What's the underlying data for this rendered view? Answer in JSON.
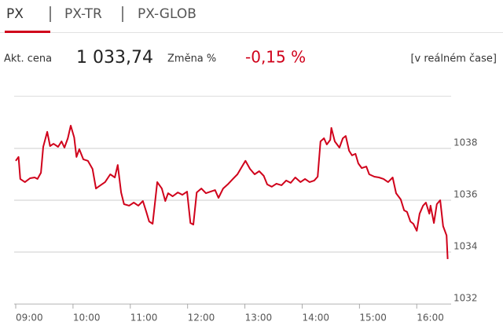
{
  "tabs": [
    "PX",
    "PX-TR",
    "PX-GLOB"
  ],
  "quote": {
    "price_label": "Akt. cena",
    "price": "1 033,74",
    "change_label": "Změna %",
    "change": "-0,15 %",
    "realtime": "[v reálném čase]"
  },
  "chart_data": {
    "type": "line",
    "color": "#d0021b",
    "grid": true,
    "x": [
      9.0,
      9.05,
      9.08,
      9.16,
      9.25,
      9.33,
      9.38,
      9.44,
      9.48,
      9.55,
      9.6,
      9.66,
      9.74,
      9.8,
      9.85,
      9.91,
      9.96,
      10.02,
      10.06,
      10.11,
      10.18,
      10.26,
      10.34,
      10.4,
      10.48,
      10.56,
      10.65,
      10.73,
      10.78,
      10.84,
      10.89,
      10.98,
      11.06,
      11.14,
      11.22,
      11.28,
      11.33,
      11.39,
      11.47,
      11.55,
      11.61,
      11.66,
      11.74,
      11.83,
      11.91,
      11.99,
      12.05,
      12.1,
      12.16,
      12.24,
      12.32,
      12.4,
      12.48,
      12.54,
      12.62,
      12.7,
      12.79,
      12.87,
      12.95,
      13.01,
      13.09,
      13.17,
      13.25,
      13.33,
      13.39,
      13.47,
      13.55,
      13.64,
      13.72,
      13.8,
      13.88,
      13.97,
      14.05,
      14.13,
      14.21,
      14.27,
      14.32,
      14.38,
      14.43,
      14.49,
      14.51,
      14.57,
      14.65,
      14.71,
      14.76,
      14.82,
      14.87,
      14.93,
      14.98,
      15.04,
      15.12,
      15.17,
      15.26,
      15.34,
      15.42,
      15.5,
      15.58,
      15.64,
      15.72,
      15.78,
      15.83,
      15.89,
      15.94,
      16.0,
      16.05,
      16.11,
      16.16,
      16.22,
      16.24,
      16.3,
      16.35,
      16.41,
      16.46,
      16.52,
      16.54
    ],
    "values": [
      1037.52,
      1037.67,
      1036.82,
      1036.7,
      1036.85,
      1036.88,
      1036.82,
      1037.06,
      1038.06,
      1038.64,
      1038.09,
      1038.18,
      1038.06,
      1038.27,
      1038.03,
      1038.39,
      1038.88,
      1038.42,
      1037.67,
      1037.97,
      1037.58,
      1037.52,
      1037.21,
      1036.45,
      1036.58,
      1036.7,
      1037.0,
      1036.88,
      1037.36,
      1036.3,
      1035.85,
      1035.79,
      1035.91,
      1035.79,
      1035.97,
      1035.55,
      1035.18,
      1035.09,
      1036.7,
      1036.45,
      1035.97,
      1036.27,
      1036.15,
      1036.3,
      1036.21,
      1036.33,
      1035.12,
      1035.06,
      1036.3,
      1036.45,
      1036.27,
      1036.33,
      1036.39,
      1036.09,
      1036.45,
      1036.61,
      1036.82,
      1037.0,
      1037.3,
      1037.52,
      1037.21,
      1037.0,
      1037.12,
      1036.94,
      1036.61,
      1036.52,
      1036.64,
      1036.58,
      1036.76,
      1036.67,
      1036.88,
      1036.7,
      1036.82,
      1036.7,
      1036.76,
      1036.91,
      1038.27,
      1038.39,
      1038.15,
      1038.33,
      1038.79,
      1038.27,
      1038.03,
      1038.39,
      1038.48,
      1037.91,
      1037.73,
      1037.79,
      1037.42,
      1037.24,
      1037.3,
      1037.0,
      1036.91,
      1036.88,
      1036.82,
      1036.7,
      1036.88,
      1036.27,
      1036.03,
      1035.61,
      1035.55,
      1035.18,
      1035.09,
      1034.82,
      1035.48,
      1035.79,
      1035.91,
      1035.48,
      1035.79,
      1035.12,
      1035.85,
      1036.0,
      1035.0,
      1034.64,
      1033.73
    ],
    "xlim": [
      9,
      16.6
    ],
    "ylim": [
      1032,
      1040
    ],
    "xticks": [
      {
        "value": 9,
        "label": "09:00"
      },
      {
        "value": 10,
        "label": "10:00"
      },
      {
        "value": 11,
        "label": "11:00"
      },
      {
        "value": 12,
        "label": "12:00"
      },
      {
        "value": 13,
        "label": "13:00"
      },
      {
        "value": 14,
        "label": "14:00"
      },
      {
        "value": 15,
        "label": "15:00"
      },
      {
        "value": 16,
        "label": "16:00"
      }
    ],
    "yticks": [
      1032,
      1034,
      1036,
      1038
    ]
  }
}
